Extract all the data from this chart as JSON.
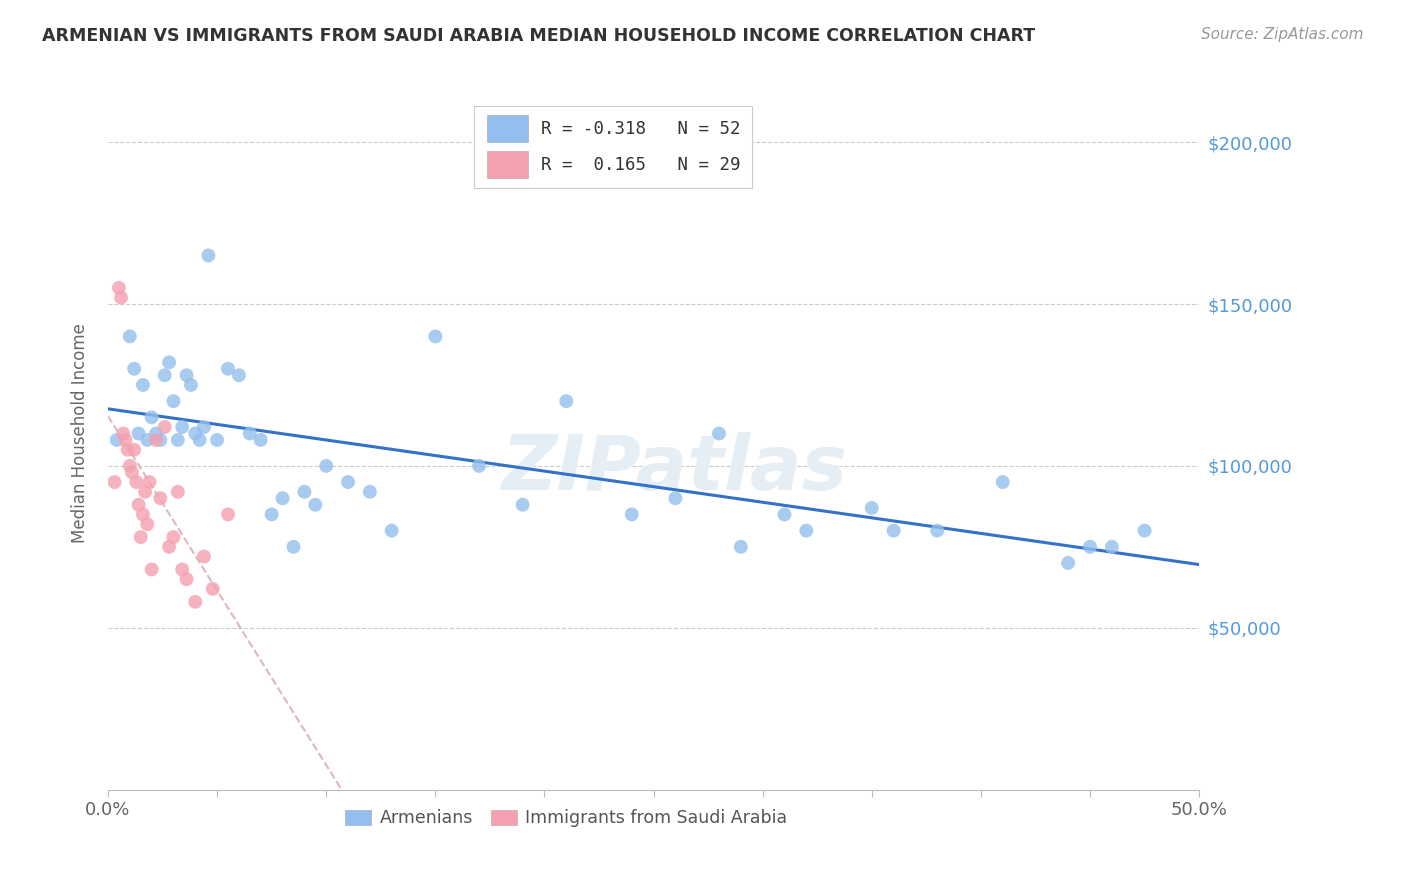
{
  "title": "ARMENIAN VS IMMIGRANTS FROM SAUDI ARABIA MEDIAN HOUSEHOLD INCOME CORRELATION CHART",
  "source": "Source: ZipAtlas.com",
  "ylabel": "Median Household Income",
  "ytick_labels": [
    "$50,000",
    "$100,000",
    "$150,000",
    "$200,000"
  ],
  "ytick_values": [
    50000,
    100000,
    150000,
    200000
  ],
  "xlim": [
    0.0,
    0.5
  ],
  "ylim": [
    0,
    220000
  ],
  "legend_blue_r": "-0.318",
  "legend_blue_n": "52",
  "legend_pink_r": "0.165",
  "legend_pink_n": "29",
  "blue_color": "#92BFED",
  "pink_color": "#F4A0B0",
  "trendline_blue_color": "#3472C8",
  "trendline_pink_color": "#D8B0BC",
  "watermark": "ZIPatlas",
  "armenians_x": [
    0.004,
    0.01,
    0.012,
    0.014,
    0.016,
    0.018,
    0.02,
    0.022,
    0.024,
    0.026,
    0.028,
    0.03,
    0.032,
    0.034,
    0.036,
    0.038,
    0.04,
    0.042,
    0.044,
    0.046,
    0.05,
    0.055,
    0.06,
    0.065,
    0.07,
    0.075,
    0.08,
    0.085,
    0.09,
    0.095,
    0.1,
    0.11,
    0.12,
    0.13,
    0.15,
    0.17,
    0.19,
    0.21,
    0.24,
    0.26,
    0.29,
    0.32,
    0.35,
    0.38,
    0.41,
    0.44,
    0.46,
    0.475,
    0.28,
    0.31,
    0.36,
    0.45
  ],
  "armenians_y": [
    108000,
    140000,
    130000,
    110000,
    125000,
    108000,
    115000,
    110000,
    108000,
    128000,
    132000,
    120000,
    108000,
    112000,
    128000,
    125000,
    110000,
    108000,
    112000,
    165000,
    108000,
    130000,
    128000,
    110000,
    108000,
    85000,
    90000,
    75000,
    92000,
    88000,
    100000,
    95000,
    92000,
    80000,
    140000,
    100000,
    88000,
    120000,
    85000,
    90000,
    75000,
    80000,
    87000,
    80000,
    95000,
    70000,
    75000,
    80000,
    110000,
    85000,
    80000,
    75000
  ],
  "saudi_x": [
    0.003,
    0.005,
    0.006,
    0.007,
    0.008,
    0.009,
    0.01,
    0.011,
    0.012,
    0.013,
    0.014,
    0.015,
    0.016,
    0.017,
    0.018,
    0.019,
    0.02,
    0.022,
    0.024,
    0.026,
    0.028,
    0.03,
    0.032,
    0.034,
    0.036,
    0.04,
    0.044,
    0.048,
    0.055
  ],
  "saudi_y": [
    95000,
    155000,
    152000,
    110000,
    108000,
    105000,
    100000,
    98000,
    105000,
    95000,
    88000,
    78000,
    85000,
    92000,
    82000,
    95000,
    68000,
    108000,
    90000,
    112000,
    75000,
    78000,
    92000,
    68000,
    65000,
    58000,
    72000,
    62000,
    85000
  ]
}
